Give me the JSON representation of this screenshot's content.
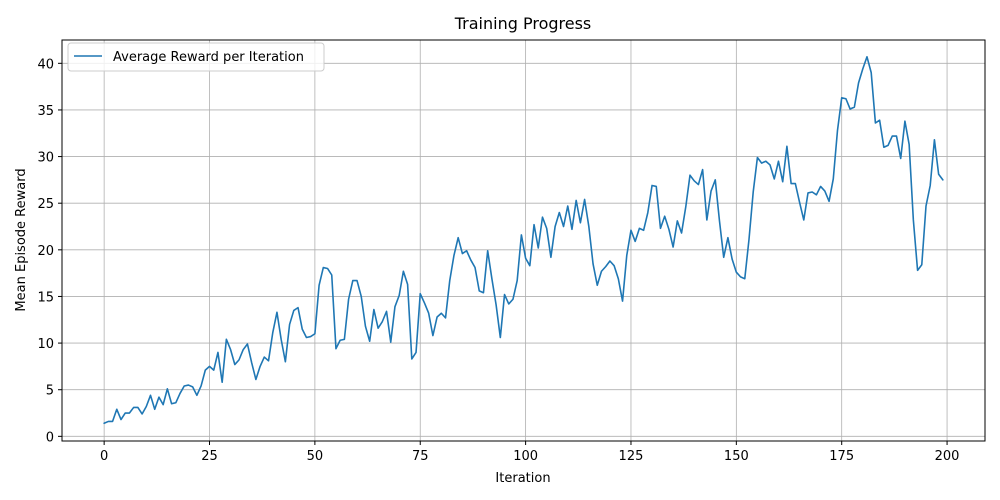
{
  "chart_data": {
    "type": "line",
    "title": "Training Progress",
    "xlabel": "Iteration",
    "ylabel": "Mean Episode Reward",
    "xlim": [
      -10,
      209
    ],
    "ylim": [
      -0.5,
      42.5
    ],
    "xticks": [
      0,
      25,
      50,
      75,
      100,
      125,
      150,
      175,
      200
    ],
    "yticks": [
      0,
      5,
      10,
      15,
      20,
      25,
      30,
      35,
      40
    ],
    "grid": true,
    "legend_position": "top-left",
    "series": [
      {
        "name": "Average Reward per Iteration",
        "color": "#1f77b4",
        "x_start": 0,
        "x_step": 1,
        "values": [
          1.4,
          1.6,
          1.6,
          2.9,
          1.8,
          2.5,
          2.5,
          3.1,
          3.1,
          2.4,
          3.2,
          4.4,
          2.9,
          4.2,
          3.4,
          5.1,
          3.5,
          3.6,
          4.6,
          5.4,
          5.5,
          5.3,
          4.4,
          5.4,
          7.1,
          7.5,
          7.1,
          9.0,
          5.8,
          10.4,
          9.3,
          7.7,
          8.2,
          9.3,
          9.9,
          7.9,
          6.1,
          7.5,
          8.5,
          8.1,
          11.1,
          13.3,
          10.4,
          8.0,
          12.0,
          13.5,
          13.8,
          11.5,
          10.6,
          10.7,
          11.0,
          16.2,
          18.1,
          18.0,
          17.3,
          9.4,
          10.3,
          10.4,
          14.7,
          16.7,
          16.7,
          15.0,
          11.8,
          10.2,
          13.6,
          11.6,
          12.3,
          13.4,
          10.1,
          13.9,
          15.1,
          17.7,
          16.3,
          8.3,
          9.0,
          15.3,
          14.3,
          13.2,
          10.8,
          12.8,
          13.2,
          12.7,
          16.7,
          19.4,
          21.3,
          19.6,
          19.9,
          18.9,
          18.1,
          15.6,
          15.4,
          19.9,
          16.9,
          14.1,
          10.6,
          15.2,
          14.2,
          14.7,
          16.7,
          21.6,
          19.1,
          18.3,
          22.7,
          20.2,
          23.5,
          22.3,
          19.2,
          22.5,
          24.0,
          22.5,
          24.7,
          22.2,
          25.3,
          22.9,
          25.4,
          22.5,
          18.5,
          16.2,
          17.7,
          18.2,
          18.8,
          18.3,
          16.9,
          14.5,
          19.4,
          22.1,
          20.9,
          22.3,
          22.1,
          24.0,
          26.9,
          26.8,
          22.3,
          23.6,
          22.2,
          20.3,
          23.1,
          21.8,
          24.6,
          28.0,
          27.4,
          27.0,
          28.6,
          23.2,
          26.3,
          27.5,
          23.1,
          19.2,
          21.3,
          19.0,
          17.6,
          17.1,
          16.9,
          21.1,
          26.2,
          29.9,
          29.3,
          29.5,
          29.1,
          27.6,
          29.5,
          27.3,
          31.1,
          27.1,
          27.1,
          25.1,
          23.2,
          26.1,
          26.2,
          25.9,
          26.8,
          26.3,
          25.2,
          27.6,
          32.8,
          36.3,
          36.2,
          35.1,
          35.3,
          37.9,
          39.4,
          40.7,
          39.0,
          33.6,
          33.9,
          31.0,
          31.2,
          32.2,
          32.2,
          29.8,
          33.8,
          31.3,
          23.2,
          17.8,
          18.4,
          24.7,
          26.9,
          31.8,
          28.1,
          27.5
        ]
      }
    ]
  }
}
